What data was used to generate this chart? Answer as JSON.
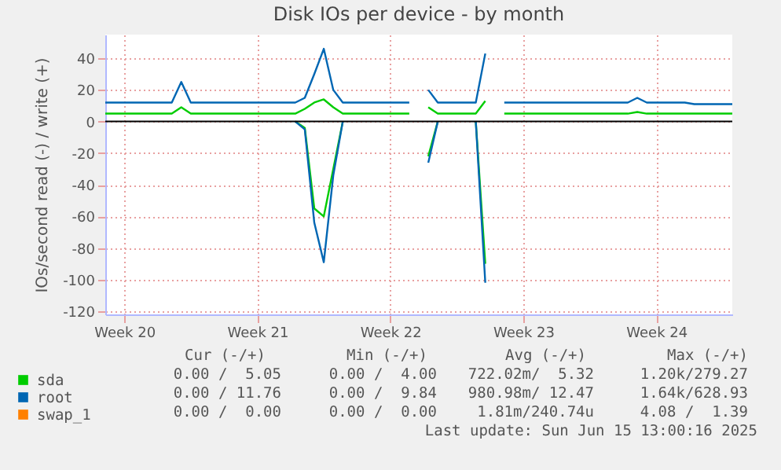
{
  "chart_data": {
    "type": "line",
    "title": "Disk IOs per device - by month",
    "ylabel": "IOs/second read (-) / write (+)",
    "categories": [
      null,
      null,
      "Week 20",
      null,
      null,
      null,
      null,
      null,
      null,
      null,
      null,
      null,
      null,
      null,
      null,
      null,
      "Week 21",
      null,
      null,
      null,
      null,
      null,
      null,
      null,
      null,
      null,
      null,
      null,
      null,
      null,
      "Week 22",
      null,
      null,
      null,
      null,
      null,
      null,
      null,
      null,
      null,
      null,
      null,
      null,
      null,
      "Week 23",
      null,
      null,
      null,
      null,
      null,
      null,
      null,
      null,
      null,
      null,
      null,
      null,
      null,
      "Week 24",
      null,
      null,
      null,
      null,
      null,
      null,
      null,
      null
    ],
    "series": [
      {
        "name": "sda",
        "color": "#00cc00",
        "values": [
          5,
          5,
          5,
          5,
          5,
          5,
          5,
          5,
          9,
          5,
          5,
          5,
          5,
          5,
          5,
          5,
          5,
          5,
          5,
          5,
          5,
          8,
          12,
          14,
          9,
          5,
          5,
          5,
          5,
          5,
          5,
          5,
          5,
          null,
          9,
          5,
          5,
          5,
          5,
          5,
          13,
          null,
          5,
          5,
          5,
          5,
          5,
          5,
          5,
          5,
          5,
          5,
          5,
          5,
          5,
          5,
          6,
          5,
          5,
          5,
          5,
          5,
          5,
          5,
          5,
          5,
          5
        ]
      },
      {
        "color": "#00cc00",
        "values": [
          null,
          null,
          null,
          null,
          null,
          null,
          null,
          null,
          null,
          null,
          null,
          null,
          null,
          null,
          null,
          null,
          null,
          null,
          null,
          null,
          0,
          -4,
          -55,
          -60,
          -30,
          0,
          null,
          null,
          null,
          null,
          null,
          null,
          null,
          null,
          -22,
          0,
          null,
          null,
          null,
          0,
          -90,
          null,
          null,
          null,
          null,
          null,
          null,
          null,
          null,
          null,
          null,
          null,
          null,
          null,
          null,
          null,
          null,
          null,
          null,
          null,
          null,
          null,
          null,
          null,
          null,
          null,
          null
        ]
      },
      {
        "name": "root",
        "color": "#0066b3",
        "values": [
          12,
          12,
          12,
          12,
          12,
          12,
          12,
          12,
          25,
          12,
          12,
          12,
          12,
          12,
          12,
          12,
          12,
          12,
          12,
          12,
          12,
          15,
          30,
          46,
          20,
          12,
          12,
          12,
          12,
          12,
          12,
          12,
          12,
          null,
          20,
          12,
          12,
          12,
          12,
          12,
          43,
          null,
          12,
          12,
          12,
          12,
          12,
          12,
          12,
          12,
          12,
          12,
          12,
          12,
          12,
          12,
          15,
          12,
          12,
          12,
          12,
          12,
          11,
          11,
          11,
          11,
          11
        ]
      },
      {
        "color": "#0066b3",
        "values": [
          null,
          null,
          null,
          null,
          null,
          null,
          null,
          null,
          null,
          null,
          null,
          null,
          null,
          null,
          null,
          null,
          null,
          null,
          null,
          null,
          0,
          -5,
          -64,
          -89,
          -34,
          0,
          null,
          null,
          null,
          null,
          null,
          null,
          null,
          null,
          -26,
          0,
          null,
          null,
          null,
          0,
          -102,
          null,
          null,
          null,
          null,
          null,
          null,
          null,
          null,
          null,
          null,
          null,
          null,
          null,
          null,
          null,
          null,
          null,
          null,
          null,
          null,
          null,
          null,
          null,
          null,
          null,
          null
        ]
      },
      {
        "name": "swap_1",
        "color": "#ff8000",
        "values": [
          null,
          null,
          null,
          null,
          null,
          null,
          null,
          null,
          null,
          null,
          null,
          null,
          null,
          null,
          null,
          null,
          null,
          null,
          null,
          null,
          null,
          null,
          null,
          null,
          null,
          null,
          null,
          null,
          null,
          null,
          null,
          null,
          null,
          null,
          null,
          null,
          null,
          null,
          null,
          null,
          null,
          null,
          null,
          null,
          null,
          null,
          null,
          null,
          null,
          null,
          null,
          null,
          null,
          null,
          null,
          null,
          null,
          null,
          null,
          null,
          null,
          null,
          null,
          null,
          null,
          null,
          null
        ]
      }
    ],
    "ylim": [
      -122,
      55
    ],
    "yticks": [
      -120,
      -100,
      -80,
      -60,
      -40,
      -20,
      0,
      20,
      40
    ],
    "ref_lines": [
      {
        "axis": "y",
        "value": 0,
        "color": "#000000"
      }
    ],
    "grid": true,
    "legend": "bottom left",
    "annotations": [
      "Cur (-/+)",
      "Min (-/+)",
      "Avg (-/+)",
      "Max (-/+)",
      "0.00 /  5.05",
      "0.00 /  4.00",
      "722.02m/  5.32",
      "1.20k/279.27",
      "0.00 / 11.76",
      "0.00 /  9.84",
      "980.98m/ 12.47",
      "1.64k/628.93",
      "0.00 /  0.00",
      "0.00 /  0.00",
      "1.81m/240.74u",
      "4.08 /  1.39",
      "Last update: Sun Jun 15 13:00:16 2025"
    ]
  }
}
